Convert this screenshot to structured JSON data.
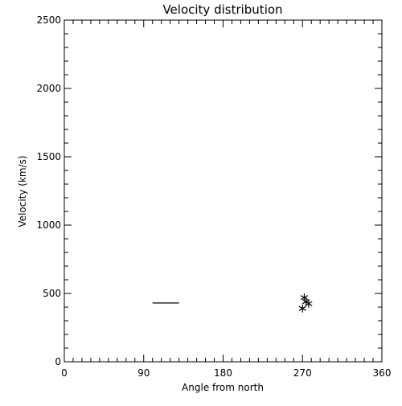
{
  "chart_data": {
    "type": "scatter",
    "title": "Velocity distribution",
    "xlabel": "Angle from north",
    "ylabel": "Velocity (km/s)",
    "xlim": [
      0,
      360
    ],
    "ylim": [
      0,
      2500
    ],
    "xticks": [
      0,
      90,
      180,
      270,
      360
    ],
    "yticks": [
      0,
      500,
      1000,
      1500,
      2000,
      2500
    ],
    "x_minor_step": 10,
    "y_minor_step": 100,
    "grid": false,
    "legend": "none",
    "colors": {
      "foreground": "#000000",
      "background": "#ffffff"
    },
    "segments": [
      {
        "x_start": 100,
        "x_end": 130,
        "y": 430
      }
    ],
    "points": [
      {
        "x": 270,
        "y": 390
      },
      {
        "x": 272,
        "y": 470
      },
      {
        "x": 274,
        "y": 440
      },
      {
        "x": 277,
        "y": 425
      }
    ],
    "marker": "asterisk"
  }
}
